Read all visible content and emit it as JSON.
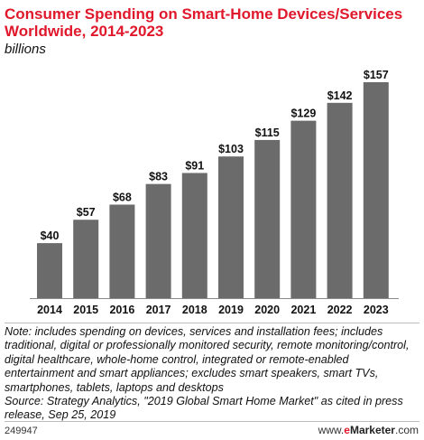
{
  "header": {
    "title": "Consumer Spending on Smart-Home Devices/Services Worldwide, 2014-2023",
    "subtitle": "billions"
  },
  "chart_data": {
    "type": "bar",
    "categories": [
      "2014",
      "2015",
      "2016",
      "2017",
      "2018",
      "2019",
      "2020",
      "2021",
      "2022",
      "2023"
    ],
    "values": [
      40,
      57,
      68,
      83,
      91,
      103,
      115,
      129,
      142,
      157
    ],
    "data_labels": [
      "$40",
      "$57",
      "$68",
      "$83",
      "$91",
      "$103",
      "$115",
      "$129",
      "$142",
      "$157"
    ],
    "title": "Consumer Spending on Smart-Home Devices/Services Worldwide, 2014-2023",
    "xlabel": "",
    "ylabel": "",
    "ylim": [
      0,
      157
    ],
    "grid": false,
    "bar_color": "#6b6b6b"
  },
  "note": {
    "text": "Note: includes spending on devices, services and installation fees; includes traditional, digital or professionally monitored security, remote monitoring/control, digital healthcare, whole-home control, integrated or remote-enabled entertainment and smart appliances; excludes smart speakers, smart TVs, smartphones, tablets, laptops and desktops",
    "source": "Source: Strategy Analytics, \"2019 Global Smart Home Market\" as cited in press release, Sep 25, 2019"
  },
  "footer": {
    "chart_id": "249947",
    "brand_prefix": "www.",
    "brand_e": "e",
    "brand_name": "Marketer",
    "brand_suffix": ".com"
  },
  "colors": {
    "title": "#e0182b",
    "bars": "#6b6b6b",
    "divider": "#bdbdbd"
  }
}
